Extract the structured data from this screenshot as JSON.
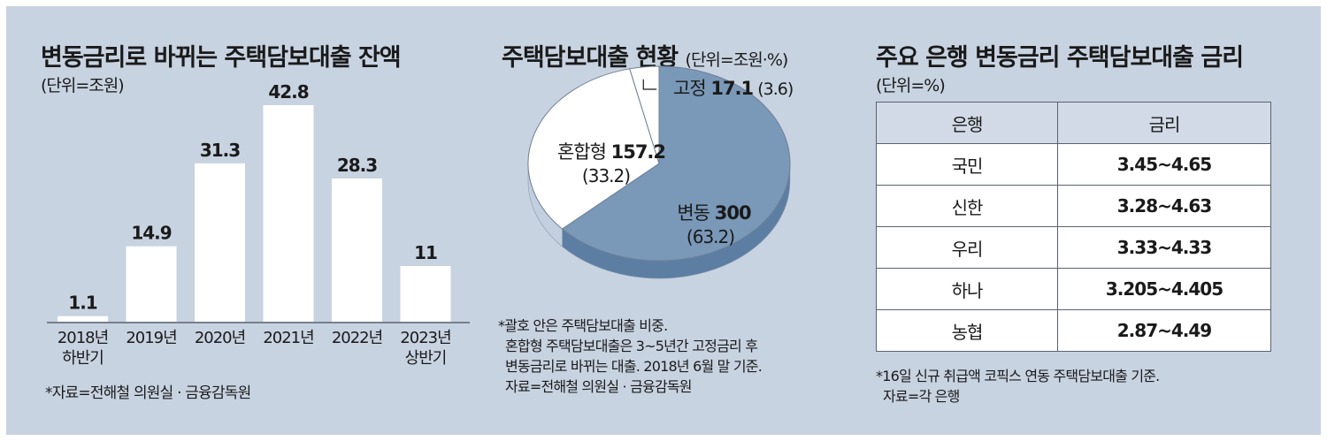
{
  "left": {
    "title": "변동금리로 바뀌는 주택담보대출 잔액",
    "unit": "(단위=조원)",
    "source": "*자료=전해철 의원실 · 금융감독원"
  },
  "middle": {
    "title": "주택담보대출 현황",
    "unit": "(단위=조원·%)",
    "notes": [
      "*괄호 안은 주택담보대출 비중.",
      "혼합형 주택담보대출은 3~5년간 고정금리 후",
      "변동금리로 바뀌는 대출. 2018년 6월 말 기준.",
      "자료=전해철 의원실 · 금융감독원"
    ]
  },
  "right": {
    "title": "주요 은행 변동금리 주택담보대출 금리",
    "unit": "(단위=%)",
    "headers": [
      "은행",
      "금리"
    ],
    "rows": [
      {
        "bank": "국민",
        "rate": "3.45~4.65"
      },
      {
        "bank": "신한",
        "rate": "3.28~4.63"
      },
      {
        "bank": "우리",
        "rate": "3.33~4.33"
      },
      {
        "bank": "하나",
        "rate": "3.205~4.405"
      },
      {
        "bank": "농협",
        "rate": "2.87~4.49"
      }
    ],
    "notes": [
      "*16일 신규 취급액 코픽스 연동 주택담보대출 기준.",
      "자료=각 은행"
    ]
  },
  "colors": {
    "background": "#c8d3e1",
    "bar": "#ffffff",
    "pie_main": "#7a98b8",
    "pie_main_side": "#5d7ea3",
    "pie_light": "#ffffff",
    "pie_side_light": "#c2cfdf"
  },
  "chart_data": [
    {
      "type": "bar",
      "title": "변동금리로 바뀌는 주택담보대출 잔액",
      "unit": "(단위=조원)",
      "categories": [
        [
          "2018년",
          "하반기"
        ],
        [
          "2019년"
        ],
        [
          "2020년"
        ],
        [
          "2021년"
        ],
        [
          "2022년"
        ],
        [
          "2023년",
          "상반기"
        ]
      ],
      "values": [
        1.1,
        14.9,
        31.3,
        42.8,
        28.3,
        11
      ],
      "value_labels": [
        "1.1",
        "14.9",
        "31.3",
        "42.8",
        "28.3",
        "11"
      ],
      "ylim": [
        0,
        42.8
      ],
      "grid": false
    },
    {
      "type": "pie",
      "title": "주택담보대출 현황",
      "unit": "(단위=조원·%)",
      "slices": [
        {
          "label": "변동",
          "value": 300,
          "value_label": "300",
          "share": 63.2,
          "share_label": "(63.2)"
        },
        {
          "label": "혼합형",
          "value": 157.2,
          "value_label": "157.2",
          "share": 33.2,
          "share_label": "(33.2)"
        },
        {
          "label": "고정",
          "value": 17.1,
          "value_label": "17.1",
          "share": 3.6,
          "share_label": "(3.6)"
        }
      ]
    }
  ]
}
